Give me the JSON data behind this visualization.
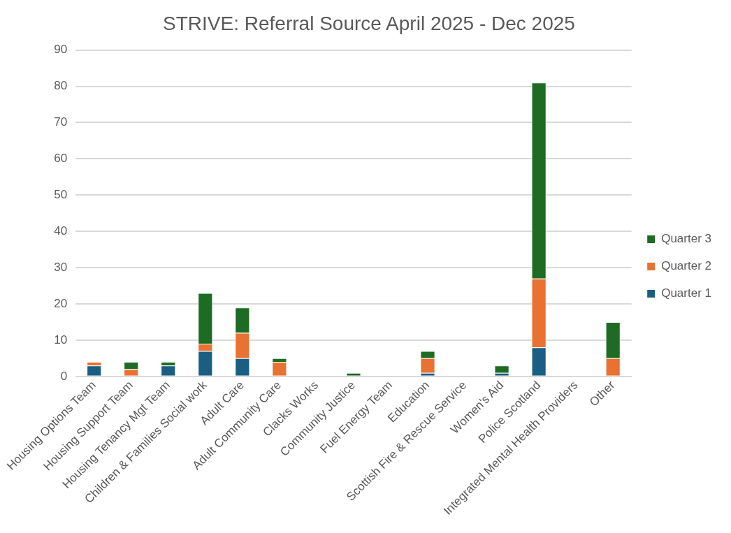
{
  "chart_data": {
    "type": "bar",
    "title": "STRIVE: Referral Source April 2025 - Dec 2025",
    "stacked": true,
    "categories": [
      "Housing Options Team",
      "Housing Support Team",
      "Housing Tenancy Mgt Team",
      "Children & Families Social work",
      "Adult Care",
      "Adult Community Care",
      "Clacks Works",
      "Community Justice",
      "Fuel Energy Team",
      "Education",
      "Scottish Fire & Rescue Service",
      "Women's Aid",
      "Police Scotland",
      "Integrated Mental Health Providers",
      "Other"
    ],
    "series": [
      {
        "name": "Quarter 1",
        "color": "#1b5e83",
        "values": [
          3,
          0,
          3,
          7,
          5,
          0,
          0,
          0,
          0,
          1,
          0,
          1,
          8,
          0,
          0
        ]
      },
      {
        "name": "Quarter 2",
        "color": "#e97132",
        "values": [
          1,
          2,
          0,
          2,
          7,
          4,
          0,
          0,
          0,
          4,
          0,
          0,
          19,
          0,
          5
        ]
      },
      {
        "name": "Quarter 3",
        "color": "#1e6b24",
        "values": [
          0,
          2,
          1,
          14,
          7,
          1,
          0,
          1,
          0,
          2,
          0,
          2,
          54,
          0,
          10
        ]
      }
    ],
    "ylim": [
      0,
      90
    ],
    "yticks": [
      0,
      10,
      20,
      30,
      40,
      50,
      60,
      70,
      80,
      90
    ],
    "grid": "y",
    "legend": "right"
  }
}
